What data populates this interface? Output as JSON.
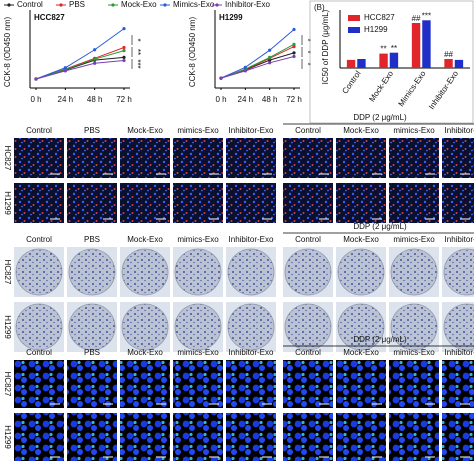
{
  "chart_data": [
    {
      "type": "line",
      "title": "HCC827",
      "y_label": "CCK-8 (OD450 nm)",
      "categories": [
        "0 h",
        "24 h",
        "48 h",
        "72 h"
      ],
      "ylim": [
        0,
        1.6
      ],
      "series": [
        {
          "name": "Control",
          "color": "#222222",
          "values": [
            0.2,
            0.4,
            0.62,
            0.68
          ]
        },
        {
          "name": "PBS",
          "color": "#e0262b",
          "values": [
            0.2,
            0.42,
            0.66,
            0.9
          ]
        },
        {
          "name": "Mock-Exo",
          "color": "#2a9a3a",
          "values": [
            0.2,
            0.41,
            0.64,
            0.83
          ]
        },
        {
          "name": "Mimics-Exo",
          "color": "#2a5cd6",
          "values": [
            0.2,
            0.45,
            0.85,
            1.32
          ]
        },
        {
          "name": "Inhibitor-Exo",
          "color": "#7a3fb0",
          "values": [
            0.2,
            0.38,
            0.55,
            0.61
          ]
        }
      ],
      "annotations": [
        "*",
        "**",
        "***"
      ]
    },
    {
      "type": "line",
      "title": "H1299",
      "y_label": "CCK-8 (OD450 nm)",
      "categories": [
        "0 h",
        "24 h",
        "48 h",
        "72 h"
      ],
      "ylim": [
        0,
        1.6
      ],
      "series": [
        {
          "color": "#222222",
          "values": [
            0.22,
            0.4,
            0.62,
            0.78
          ]
        },
        {
          "color": "#e0262b",
          "values": [
            0.22,
            0.41,
            0.66,
            0.92
          ]
        },
        {
          "color": "#2a9a3a",
          "values": [
            0.22,
            0.42,
            0.68,
            0.97
          ]
        },
        {
          "color": "#2a5cd6",
          "values": [
            0.22,
            0.46,
            0.84,
            1.3
          ]
        },
        {
          "color": "#7a3fb0",
          "values": [
            0.22,
            0.38,
            0.56,
            0.7
          ]
        }
      ],
      "annotations": [
        "*",
        "*",
        "*"
      ]
    },
    {
      "type": "bar",
      "label": "(B)",
      "y_label": "IC50 of DDP (μg/mL)",
      "categories": [
        "Control",
        "Mock-Exo",
        "Mimics-Exo",
        "Inhibitor-Exo"
      ],
      "ylim": [
        0,
        30
      ],
      "series": [
        {
          "name": "HCC827",
          "color": "#e0262b",
          "values": [
            4.5,
            8,
            25,
            5
          ],
          "annotations": [
            null,
            "**",
            "##",
            "##"
          ]
        },
        {
          "name": "H1299",
          "color": "#1f2fc8",
          "values": [
            5,
            8.5,
            26.5,
            4.5
          ],
          "annotations": [
            null,
            "**",
            "***",
            null
          ]
        }
      ]
    }
  ],
  "grids": [
    {
      "group_label": "DDP (2 μg/mL)",
      "rows": [
        "HC827",
        "H1299"
      ],
      "columns": [
        "Control",
        "PBS",
        "Mock-Exo",
        "mimics-Exo",
        "Inhibitor-Exo"
      ],
      "ddp_columns": [
        "Control",
        "Mock-Exo",
        "mimics-Exo",
        "Inhibitor-Exo"
      ]
    },
    {
      "group_label": "DDP (2 μg/mL)",
      "rows": [
        "HC827",
        "H1299"
      ],
      "columns": [
        "Control",
        "PBS",
        "Mock-Exo",
        "mimics-Exo",
        "Inhibitor-Exo"
      ],
      "ddp_columns": [
        "Control",
        "Mock-Exo",
        "mimics-Exo",
        "Inhibitor-Exo"
      ]
    },
    {
      "group_label": "DDP (2 μg/mL)",
      "rows": [
        "HC827",
        "H1299"
      ],
      "columns": [
        "Control",
        "PBS",
        "Mock-Exo",
        "mimics-Exo",
        "Inhibitor-Exo"
      ],
      "ddp_columns": [
        "Control",
        "Mock-Exo",
        "mimics-Exo",
        "Inhibitor-Exo"
      ]
    }
  ]
}
